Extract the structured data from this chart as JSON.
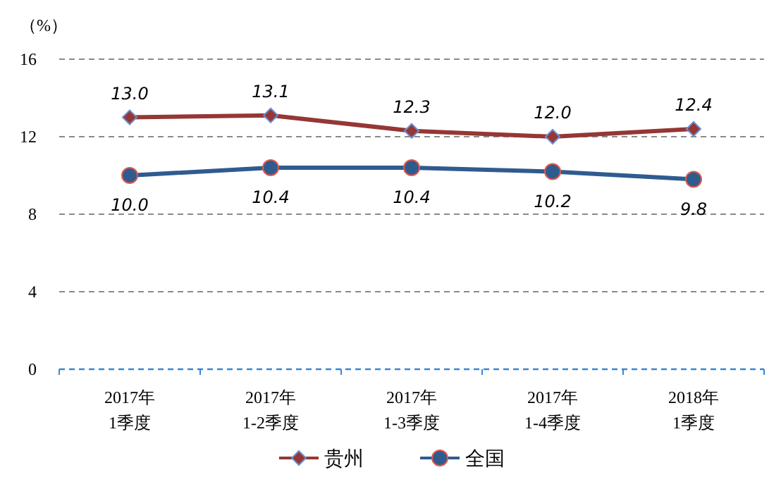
{
  "chart_data": {
    "type": "line",
    "ylabel": "（%）",
    "categories": [
      "2017年\n1季度",
      "2017年\n1-2季度",
      "2017年\n1-3季度",
      "2017年\n1-4季度",
      "2018年\n1季度"
    ],
    "series": [
      {
        "name": "贵州",
        "color": "#953735",
        "marker": "diamond",
        "values": [
          13.0,
          13.1,
          12.3,
          12.0,
          12.4
        ],
        "value_labels": [
          "13.0",
          "13.1",
          "12.3",
          "12.0",
          "12.4"
        ]
      },
      {
        "name": "全国",
        "color": "#2f5b8f",
        "marker": "circle",
        "values": [
          10.0,
          10.4,
          10.4,
          10.2,
          9.8
        ],
        "value_labels": [
          "10.0",
          "10.4",
          "10.4",
          "10.2",
          "9.8"
        ]
      }
    ],
    "ylim": [
      0,
      16
    ],
    "yticks": [
      0,
      4,
      8,
      12,
      16
    ],
    "grid": "y",
    "legend": "bottom",
    "line_style": "solid"
  }
}
